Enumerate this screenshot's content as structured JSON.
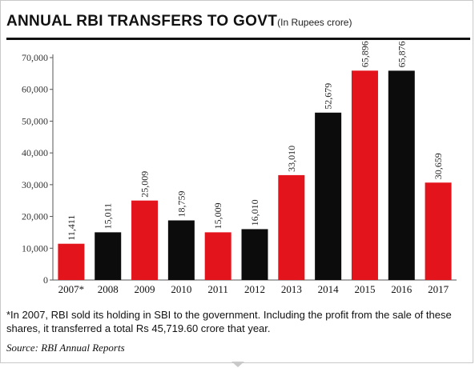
{
  "header": {
    "title": "ANNUAL RBI TRANSFERS TO GOVT",
    "unit": "(In Rupees crore)"
  },
  "colors": {
    "red": "#e3141c",
    "black": "#0c0c0c"
  },
  "chart_data": {
    "type": "bar",
    "title": "ANNUAL RBI TRANSFERS TO GOVT",
    "unit_note": "(In Rupees crore)",
    "xlabel": "",
    "ylabel": "",
    "categories": [
      "2007*",
      "2008",
      "2009",
      "2010",
      "2011",
      "2012",
      "2013",
      "2014",
      "2015",
      "2016",
      "2017"
    ],
    "values": [
      11411,
      15011,
      25009,
      18759,
      15009,
      16010,
      33010,
      52679,
      65896,
      65876,
      30659
    ],
    "value_labels": [
      "11,411",
      "15,011",
      "25,009",
      "18,759",
      "15,009",
      "16,010",
      "33,010",
      "52,679",
      "65,896",
      "65,876",
      "30,659"
    ],
    "bar_colors": [
      "red",
      "black",
      "red",
      "black",
      "red",
      "black",
      "red",
      "black",
      "red",
      "black",
      "red"
    ],
    "ylim": [
      0,
      70000
    ],
    "yticks": [
      0,
      10000,
      20000,
      30000,
      40000,
      50000,
      60000,
      70000
    ],
    "ytick_labels": [
      "0",
      "10,000",
      "20,000",
      "30,000",
      "40,000",
      "50,000",
      "60,000",
      "70,000"
    ],
    "grid": false,
    "legend": false,
    "value_label_orientation": "vertical"
  },
  "footnote": "*In 2007, RBI sold its holding in SBI to the government. Including the profit from the sale of these shares, it transferred a total Rs 45,719.60 crore that year.",
  "source": "Source: RBI Annual Reports"
}
